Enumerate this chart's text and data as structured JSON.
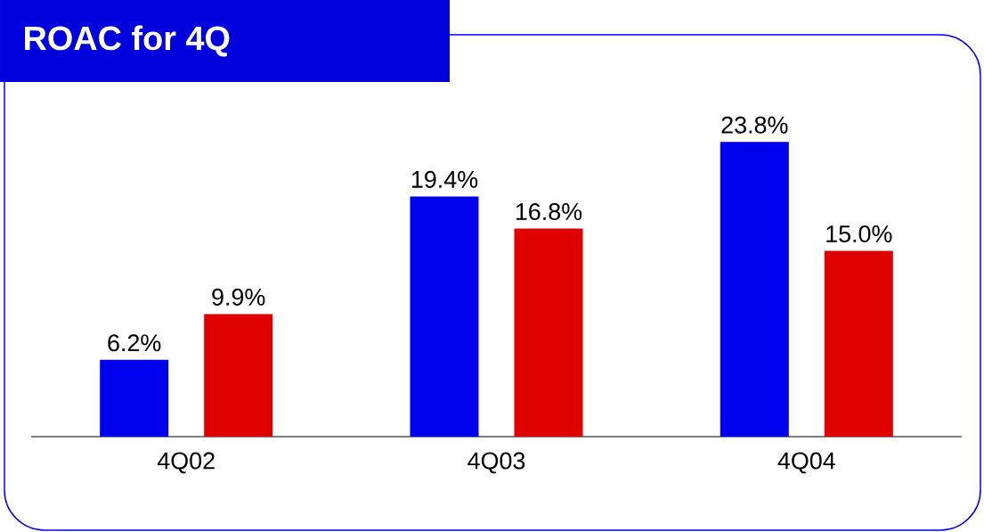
{
  "chart_data": {
    "type": "bar",
    "title": "ROAC for 4Q",
    "categories": [
      "4Q02",
      "4Q03",
      "4Q04"
    ],
    "series": [
      {
        "color": "#0000ee",
        "values": [
          6.2,
          19.4,
          23.8
        ],
        "value_labels": [
          "6.2%",
          "19.4%",
          "23.8%"
        ]
      },
      {
        "color": "#e00000",
        "values": [
          9.9,
          16.8,
          15.0
        ],
        "value_labels": [
          "9.9%",
          "16.8%",
          "15.0%"
        ]
      }
    ]
  }
}
